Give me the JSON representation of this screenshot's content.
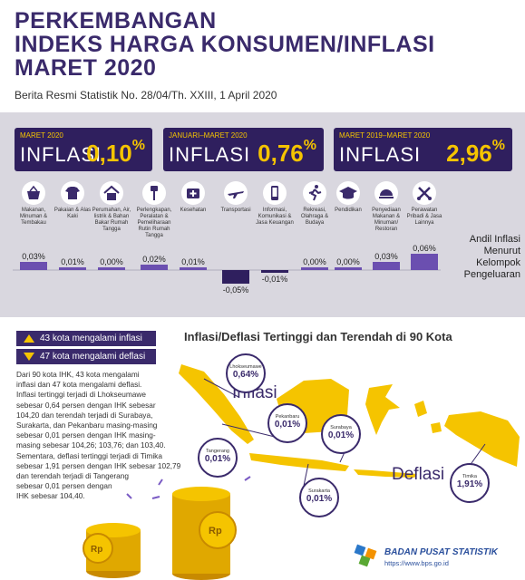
{
  "header": {
    "title_lines": [
      "PERKEMBANGAN",
      "INDEKS HARGA KONSUMEN/INFLASI",
      "MARET 2020"
    ],
    "subtitle": "Berita Resmi Statistik No. 28/04/Th. XXIII, 1 April 2020"
  },
  "kpis": [
    {
      "period": "MARET 2020",
      "label": "INFLASI",
      "value": "0,10",
      "unit": "%"
    },
    {
      "period": "JANUARI–MARET 2020",
      "label": "INFLASI",
      "value": "0,76",
      "unit": "%"
    },
    {
      "period": "MARET 2019–MARET 2020",
      "label": "INFLASI",
      "value": "2,96",
      "unit": "%"
    }
  ],
  "categories": [
    {
      "label": "Makanan, Minuman & Tembakau",
      "icon": "food-basket-icon"
    },
    {
      "label": "Pakaian & Alas Kaki",
      "icon": "shirt-icon"
    },
    {
      "label": "Perumahan, Air, listrik & Bahan Bakar Rumah Tangga",
      "icon": "house-icon"
    },
    {
      "label": "Perlengkapan, Peralatan & Pemeliharaan Rutin Rumah Tangga",
      "icon": "tools-icon"
    },
    {
      "label": "Kesehatan",
      "icon": "medical-kit-icon"
    },
    {
      "label": "Transportasi",
      "icon": "airplane-icon"
    },
    {
      "label": "Informasi, Komunikasi & Jasa Keuangan",
      "icon": "phone-icon"
    },
    {
      "label": "Rekreasi, Olahraga & Budaya",
      "icon": "runner-icon"
    },
    {
      "label": "Pendidikan",
      "icon": "graduation-cap-icon"
    },
    {
      "label": "Penyediaan Makanan & Minuman/ Restoran",
      "icon": "restaurant-icon"
    },
    {
      "label": "Perawatan Pribadi & Jasa Lainnya",
      "icon": "personal-care-icon"
    }
  ],
  "andil_label": [
    "Andil Inflasi",
    "Menurut",
    "Kelompok",
    "Pengeluaran"
  ],
  "chart_data": {
    "type": "bar",
    "categories": [
      "Makanan, Minuman & Tembakau",
      "Pakaian & Alas Kaki",
      "Perumahan, Air, listrik & Bahan Bakar Rumah Tangga",
      "Perlengkapan, Peralatan & Pemeliharaan Rutin Rumah Tangga",
      "Kesehatan",
      "Transportasi",
      "Informasi, Komunikasi & Jasa Keuangan",
      "Rekreasi, Olahraga & Budaya",
      "Pendidikan",
      "Penyediaan Makanan & Minuman/ Restoran",
      "Perawatan Pribadi & Jasa Lainnya"
    ],
    "values": [
      0.03,
      0.01,
      0.0,
      0.02,
      0.01,
      -0.05,
      -0.01,
      0.0,
      0.0,
      0.03,
      0.06
    ],
    "value_labels": [
      "0,03%",
      "0,01%",
      "0,00%",
      "0,02%",
      "0,01%",
      "-0,05%",
      "-0,01%",
      "0,00%",
      "0,00%",
      "0,03%",
      "0,06%"
    ],
    "title": "Andil Inflasi Menurut Kelompok Pengeluaran",
    "ylim": [
      -0.05,
      0.06
    ],
    "grid": false,
    "colors": {
      "positive": "#6b4fb0",
      "negative": "#2f1f5e"
    }
  },
  "legend": {
    "inflasi_text": "43 kota mengalami inflasi",
    "deflasi_text": "47 kota mengalami deflasi"
  },
  "paragraph_lines": [
    "Dari 90 kota IHK, 43 kota mengalami",
    "inflasi dan 47 kota mengalami deflasi.",
    "Inflasi tertinggi terjadi di Lhokseumawe",
    "sebesar 0,64 persen dengan IHK sebesar",
    "104,20 dan terendah terjadi di Surabaya,",
    "Surakarta, dan Pekanbaru masing-masing",
    "sebesar 0,01 persen dengan IHK masing-",
    "masing sebesar 104,26; 103,76; dan 103,40.",
    "Sementara, deflasi tertinggi terjadi di Timika",
    "sebesar 1,91 persen dengan IHK sebesar 102,79",
    "dan terendah terjadi di Tangerang",
    "sebesar 0,01 persen dengan",
    "IHK sebesar 104,40."
  ],
  "map": {
    "title": "Inflasi/Deflasi Tertinggi dan Terendah di 90 Kota",
    "inflasi_word": "Inflasi",
    "deflasi_word": "Deflasi",
    "cities": [
      {
        "name": "Lhokseumawe",
        "value": "0,64%",
        "kind": "inflasi"
      },
      {
        "name": "Pekanbaru",
        "value": "0,01%",
        "kind": "inflasi"
      },
      {
        "name": "Surabaya",
        "value": "0,01%",
        "kind": "inflasi"
      },
      {
        "name": "Tangerang",
        "value": "0,01%",
        "kind": "deflasi"
      },
      {
        "name": "Surakarta",
        "value": "0,01%",
        "kind": "inflasi"
      },
      {
        "name": "Timika",
        "value": "1,91%",
        "kind": "deflasi"
      }
    ]
  },
  "footer": {
    "org": "BADAN PUSAT STATISTIK",
    "url": "https://www.bps.go.id"
  },
  "colors": {
    "primary": "#3a2a6b",
    "accent": "#f5c400",
    "panel": "#d9d7df",
    "bar": "#6b4fb0"
  }
}
